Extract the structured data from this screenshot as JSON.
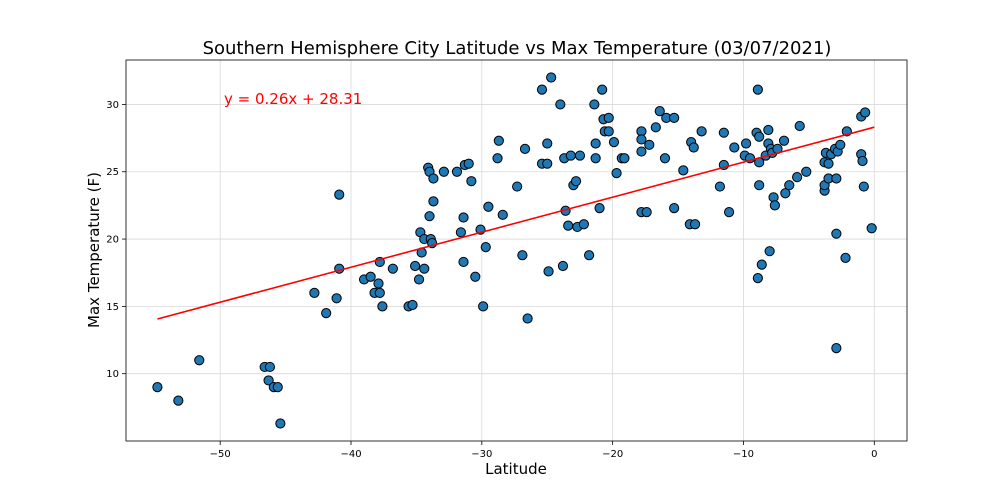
{
  "chart_data": {
    "type": "scatter",
    "title": "Southern Hemisphere City Latitude vs Max Temperature (03/07/2021)",
    "xlabel": "Latitude",
    "ylabel": "Max Temperature (F)",
    "xlim": [
      -57.2,
      2.5
    ],
    "ylim": [
      5.0,
      33.3
    ],
    "xticks": [
      -50,
      -40,
      -30,
      -20,
      -10,
      0
    ],
    "yticks": [
      10,
      15,
      20,
      25,
      30
    ],
    "grid": true,
    "marker_color": "#1f77b4",
    "marker_edge_color": "#000000",
    "line_color": "#ff0000",
    "regression": {
      "slope": 0.26,
      "intercept": 28.31,
      "x_range": [
        -54.8,
        0
      ],
      "label": "y = 0.26x + 28.31"
    },
    "points": [
      [
        -54.8,
        9.0
      ],
      [
        -53.2,
        8.0
      ],
      [
        -51.6,
        11.0
      ],
      [
        -46.6,
        10.5
      ],
      [
        -46.2,
        10.5
      ],
      [
        -46.3,
        9.5
      ],
      [
        -45.9,
        9.0
      ],
      [
        -45.6,
        9.0
      ],
      [
        -45.4,
        6.3
      ],
      [
        -42.8,
        16.0
      ],
      [
        -41.9,
        14.5
      ],
      [
        -41.1,
        15.6
      ],
      [
        -40.9,
        17.8
      ],
      [
        -40.9,
        23.3
      ],
      [
        -39.0,
        17.0
      ],
      [
        -38.5,
        17.2
      ],
      [
        -38.2,
        16.0
      ],
      [
        -37.9,
        16.7
      ],
      [
        -37.8,
        18.3
      ],
      [
        -37.8,
        16.0
      ],
      [
        -37.6,
        15.0
      ],
      [
        -36.8,
        17.8
      ],
      [
        -35.6,
        15.0
      ],
      [
        -35.3,
        15.1
      ],
      [
        -35.1,
        18.0
      ],
      [
        -34.8,
        17.0
      ],
      [
        -34.7,
        20.5
      ],
      [
        -34.6,
        19.0
      ],
      [
        -34.4,
        17.8
      ],
      [
        -34.4,
        20.0
      ],
      [
        -34.1,
        25.3
      ],
      [
        -34.0,
        25.0
      ],
      [
        -34.0,
        21.7
      ],
      [
        -33.9,
        20.0
      ],
      [
        -33.8,
        19.7
      ],
      [
        -33.7,
        22.8
      ],
      [
        -33.7,
        24.5
      ],
      [
        -32.9,
        25.0
      ],
      [
        -31.9,
        25.0
      ],
      [
        -31.6,
        20.5
      ],
      [
        -31.4,
        21.6
      ],
      [
        -31.4,
        18.3
      ],
      [
        -31.3,
        25.5
      ],
      [
        -31.0,
        25.6
      ],
      [
        -30.8,
        24.3
      ],
      [
        -30.5,
        17.2
      ],
      [
        -30.1,
        20.7
      ],
      [
        -29.9,
        15.0
      ],
      [
        -29.7,
        19.4
      ],
      [
        -29.5,
        22.4
      ],
      [
        -28.8,
        26.0
      ],
      [
        -28.7,
        27.3
      ],
      [
        -28.4,
        21.8
      ],
      [
        -27.3,
        23.9
      ],
      [
        -26.9,
        18.8
      ],
      [
        -26.7,
        26.7
      ],
      [
        -26.5,
        14.1
      ],
      [
        -25.4,
        25.6
      ],
      [
        -25.4,
        31.1
      ],
      [
        -25.0,
        25.6
      ],
      [
        -25.0,
        27.1
      ],
      [
        -24.9,
        17.6
      ],
      [
        -24.7,
        32.0
      ],
      [
        -24.0,
        30.0
      ],
      [
        -23.8,
        18.0
      ],
      [
        -23.7,
        26.0
      ],
      [
        -23.6,
        22.1
      ],
      [
        -23.4,
        21.0
      ],
      [
        -23.2,
        26.2
      ],
      [
        -23.0,
        24.0
      ],
      [
        -22.8,
        24.3
      ],
      [
        -22.7,
        20.9
      ],
      [
        -22.5,
        26.2
      ],
      [
        -22.2,
        21.1
      ],
      [
        -21.8,
        18.8
      ],
      [
        -21.4,
        30.0
      ],
      [
        -21.3,
        27.1
      ],
      [
        -21.3,
        26.0
      ],
      [
        -21.0,
        22.3
      ],
      [
        -20.8,
        31.1
      ],
      [
        -20.7,
        28.9
      ],
      [
        -20.6,
        28.0
      ],
      [
        -20.3,
        28.0
      ],
      [
        -20.3,
        29.0
      ],
      [
        -19.9,
        27.2
      ],
      [
        -19.7,
        24.9
      ],
      [
        -19.3,
        26.0
      ],
      [
        -19.1,
        26.0
      ],
      [
        -17.8,
        28.0
      ],
      [
        -17.8,
        27.4
      ],
      [
        -17.8,
        26.5
      ],
      [
        -17.8,
        22.0
      ],
      [
        -17.4,
        22.0
      ],
      [
        -17.2,
        27.0
      ],
      [
        -16.7,
        28.3
      ],
      [
        -16.4,
        29.5
      ],
      [
        -16.0,
        26.0
      ],
      [
        -15.9,
        29.0
      ],
      [
        -15.3,
        22.3
      ],
      [
        -15.3,
        29.0
      ],
      [
        -14.6,
        25.1
      ],
      [
        -14.1,
        21.1
      ],
      [
        -14.0,
        27.2
      ],
      [
        -13.8,
        26.8
      ],
      [
        -13.7,
        21.1
      ],
      [
        -13.2,
        28.0
      ],
      [
        -11.8,
        23.9
      ],
      [
        -11.5,
        27.9
      ],
      [
        -11.5,
        25.5
      ],
      [
        -11.1,
        22.0
      ],
      [
        -10.7,
        26.8
      ],
      [
        -9.9,
        26.2
      ],
      [
        -9.8,
        27.1
      ],
      [
        -9.5,
        26.0
      ],
      [
        -9.0,
        27.9
      ],
      [
        -8.9,
        31.1
      ],
      [
        -8.9,
        17.1
      ],
      [
        -8.8,
        27.6
      ],
      [
        -8.8,
        25.7
      ],
      [
        -8.8,
        24.0
      ],
      [
        -8.6,
        18.1
      ],
      [
        -8.3,
        26.2
      ],
      [
        -8.1,
        27.1
      ],
      [
        -8.1,
        28.1
      ],
      [
        -8.0,
        19.1
      ],
      [
        -7.9,
        26.7
      ],
      [
        -7.8,
        26.4
      ],
      [
        -7.7,
        23.1
      ],
      [
        -7.6,
        22.5
      ],
      [
        -7.4,
        26.7
      ],
      [
        -6.9,
        27.3
      ],
      [
        -6.8,
        23.4
      ],
      [
        -6.5,
        24.0
      ],
      [
        -5.9,
        24.6
      ],
      [
        -5.7,
        28.4
      ],
      [
        -5.2,
        25.0
      ],
      [
        -3.8,
        25.7
      ],
      [
        -3.8,
        23.6
      ],
      [
        -3.8,
        24.0
      ],
      [
        -3.7,
        26.4
      ],
      [
        -3.5,
        25.6
      ],
      [
        -3.5,
        24.5
      ],
      [
        -3.3,
        26.3
      ],
      [
        -3.0,
        26.7
      ],
      [
        -2.9,
        20.4
      ],
      [
        -2.9,
        24.5
      ],
      [
        -2.9,
        11.9
      ],
      [
        -2.8,
        26.5
      ],
      [
        -2.6,
        27.0
      ],
      [
        -2.2,
        18.6
      ],
      [
        -2.1,
        28.0
      ],
      [
        -1.0,
        29.1
      ],
      [
        -1.0,
        26.3
      ],
      [
        -0.9,
        25.8
      ],
      [
        -0.8,
        23.9
      ],
      [
        -0.7,
        29.4
      ],
      [
        -0.2,
        20.8
      ]
    ]
  }
}
